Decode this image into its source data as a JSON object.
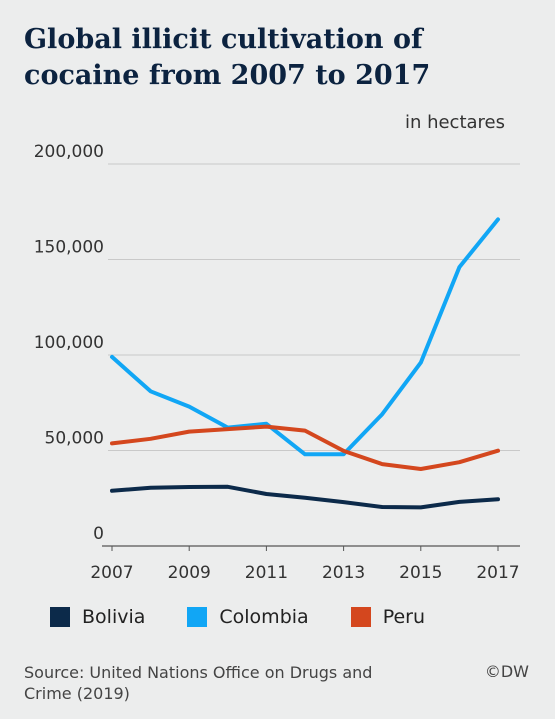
{
  "title": "Global illicit cultivation of cocaine from 2007 to 2017",
  "unit_label": "in hectares",
  "source": "Source: United Nations Office on Drugs and Crime (2019)",
  "credit": "©DW",
  "colors": {
    "Bolivia": "#0c2a4a",
    "Colombia": "#11a6f5",
    "Peru": "#d4471e",
    "background": "#eceded",
    "grid": "#c9c9c9"
  },
  "chart_data": {
    "type": "line",
    "title": "Global illicit cultivation of cocaine from 2007 to 2017",
    "ylabel": "in hectares",
    "x": [
      2007,
      2008,
      2009,
      2010,
      2011,
      2012,
      2013,
      2014,
      2015,
      2016,
      2017
    ],
    "x_ticks": [
      "2007",
      "2009",
      "2011",
      "2013",
      "2015",
      "2017"
    ],
    "y_ticks": [
      "0",
      "50,000",
      "100,000",
      "150,000",
      "200,000"
    ],
    "ylim": [
      0,
      200000
    ],
    "grid": true,
    "legend": "bottom",
    "series": [
      {
        "name": "Bolivia",
        "values": [
          28900,
          30500,
          30900,
          31000,
          27200,
          25300,
          23000,
          20400,
          20200,
          23100,
          24500
        ]
      },
      {
        "name": "Colombia",
        "values": [
          99000,
          81000,
          73000,
          62000,
          64000,
          48000,
          48000,
          69000,
          96000,
          146000,
          171000
        ]
      },
      {
        "name": "Peru",
        "values": [
          53700,
          56100,
          59900,
          61200,
          62500,
          60400,
          49800,
          42900,
          40300,
          43900,
          49900
        ]
      }
    ]
  }
}
